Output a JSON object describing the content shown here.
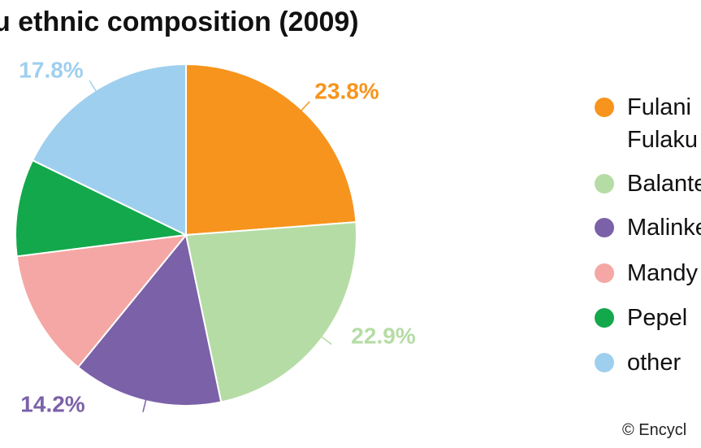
{
  "chart_data": {
    "type": "pie",
    "title": "u ethnic composition (2009)",
    "categories": [
      "Fulani Fulaku",
      "Balante",
      "Malinke",
      "Mandy",
      "Pepel",
      "other"
    ],
    "values": [
      23.8,
      22.9,
      14.2,
      12.1,
      9.2,
      17.8
    ],
    "value_labels": [
      "23.8%",
      "22.9%",
      "14.2%",
      null,
      null,
      "17.8%"
    ],
    "colors": [
      "#f7941d",
      "#b5dca5",
      "#7b61a8",
      "#f4a7a4",
      "#12a84b",
      "#9fcfee"
    ],
    "credit": "© Encycl"
  }
}
